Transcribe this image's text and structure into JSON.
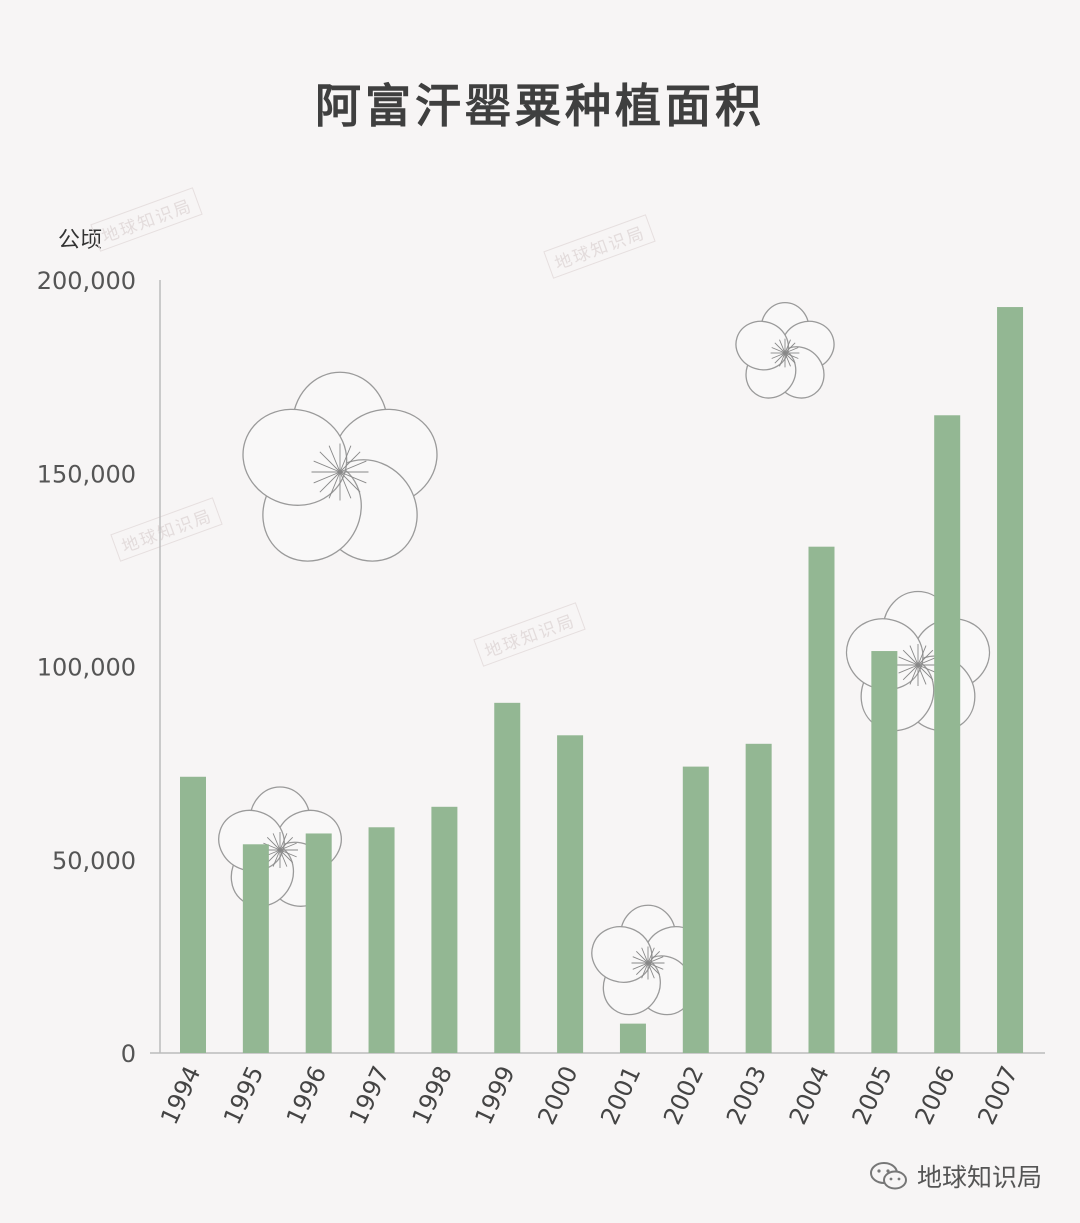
{
  "chart_data": {
    "type": "bar",
    "title": "阿富汗罂粟种植面积",
    "ylabel": "公顷",
    "xlabel": "",
    "categories": [
      "1994",
      "1995",
      "1996",
      "1997",
      "1998",
      "1999",
      "2000",
      "2001",
      "2002",
      "2003",
      "2004",
      "2005",
      "2006",
      "2007"
    ],
    "values": [
      71470,
      54000,
      56800,
      58400,
      63700,
      90600,
      82200,
      7600,
      74100,
      80000,
      131000,
      104000,
      165000,
      193000
    ],
    "ylim": [
      0,
      200000
    ],
    "yticks": [
      0,
      50000,
      100000,
      150000,
      200000
    ],
    "ytick_labels": [
      "0",
      "50,000",
      "100,000",
      "150,000",
      "200,000"
    ],
    "grid": false,
    "bar_color": "#93b793",
    "axis_color": "#bbbbbb"
  },
  "watermark": "地球知识局",
  "footer": {
    "icon": "wechat-icon",
    "label": "地球知识局"
  }
}
